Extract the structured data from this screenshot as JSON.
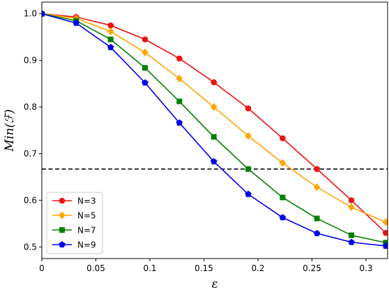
{
  "chart_data": {
    "type": "line",
    "title": "",
    "xlabel": "ε",
    "ylabel": "Min(ℱ)",
    "xlim": [
      0,
      0.32
    ],
    "ylim": [
      0.475,
      1.025
    ],
    "xticks": [
      0,
      0.05,
      0.1,
      0.15,
      0.2,
      0.25,
      0.3
    ],
    "xtick_labels": [
      "0",
      "0.05",
      "0.1",
      "0.15",
      "0.2",
      "0.25",
      "0.3"
    ],
    "yticks": [
      0.5,
      0.6,
      0.7,
      0.8,
      0.9,
      1.0
    ],
    "ytick_labels": [
      "0.5",
      "0.6",
      "0.7",
      "0.8",
      "0.9",
      "1.0"
    ],
    "grid": false,
    "legend_position": "lower-left",
    "x": [
      0,
      0.0318,
      0.0637,
      0.0955,
      0.1273,
      0.1592,
      0.191,
      0.2228,
      0.2546,
      0.2865,
      0.3183
    ],
    "reference_line": {
      "y": 0.667,
      "style": "dashed",
      "color": "#000000"
    },
    "series": [
      {
        "name": "N=3",
        "color": "#ee1111",
        "marker": "circle",
        "values": [
          1.0,
          0.993,
          0.975,
          0.945,
          0.904,
          0.853,
          0.797,
          0.733,
          0.667,
          0.6,
          0.53
        ]
      },
      {
        "name": "N=5",
        "color": "#ffa500",
        "marker": "diamond",
        "values": [
          1.0,
          0.99,
          0.962,
          0.917,
          0.861,
          0.8,
          0.738,
          0.68,
          0.628,
          0.585,
          0.553
        ]
      },
      {
        "name": "N=7",
        "color": "#008000",
        "marker": "square",
        "values": [
          1.0,
          0.985,
          0.945,
          0.884,
          0.812,
          0.736,
          0.667,
          0.606,
          0.561,
          0.525,
          0.509
        ]
      },
      {
        "name": "N=9",
        "color": "#0000ee",
        "marker": "pentagon",
        "values": [
          1.0,
          0.98,
          0.928,
          0.852,
          0.766,
          0.683,
          0.613,
          0.563,
          0.529,
          0.51,
          0.502
        ]
      }
    ]
  }
}
